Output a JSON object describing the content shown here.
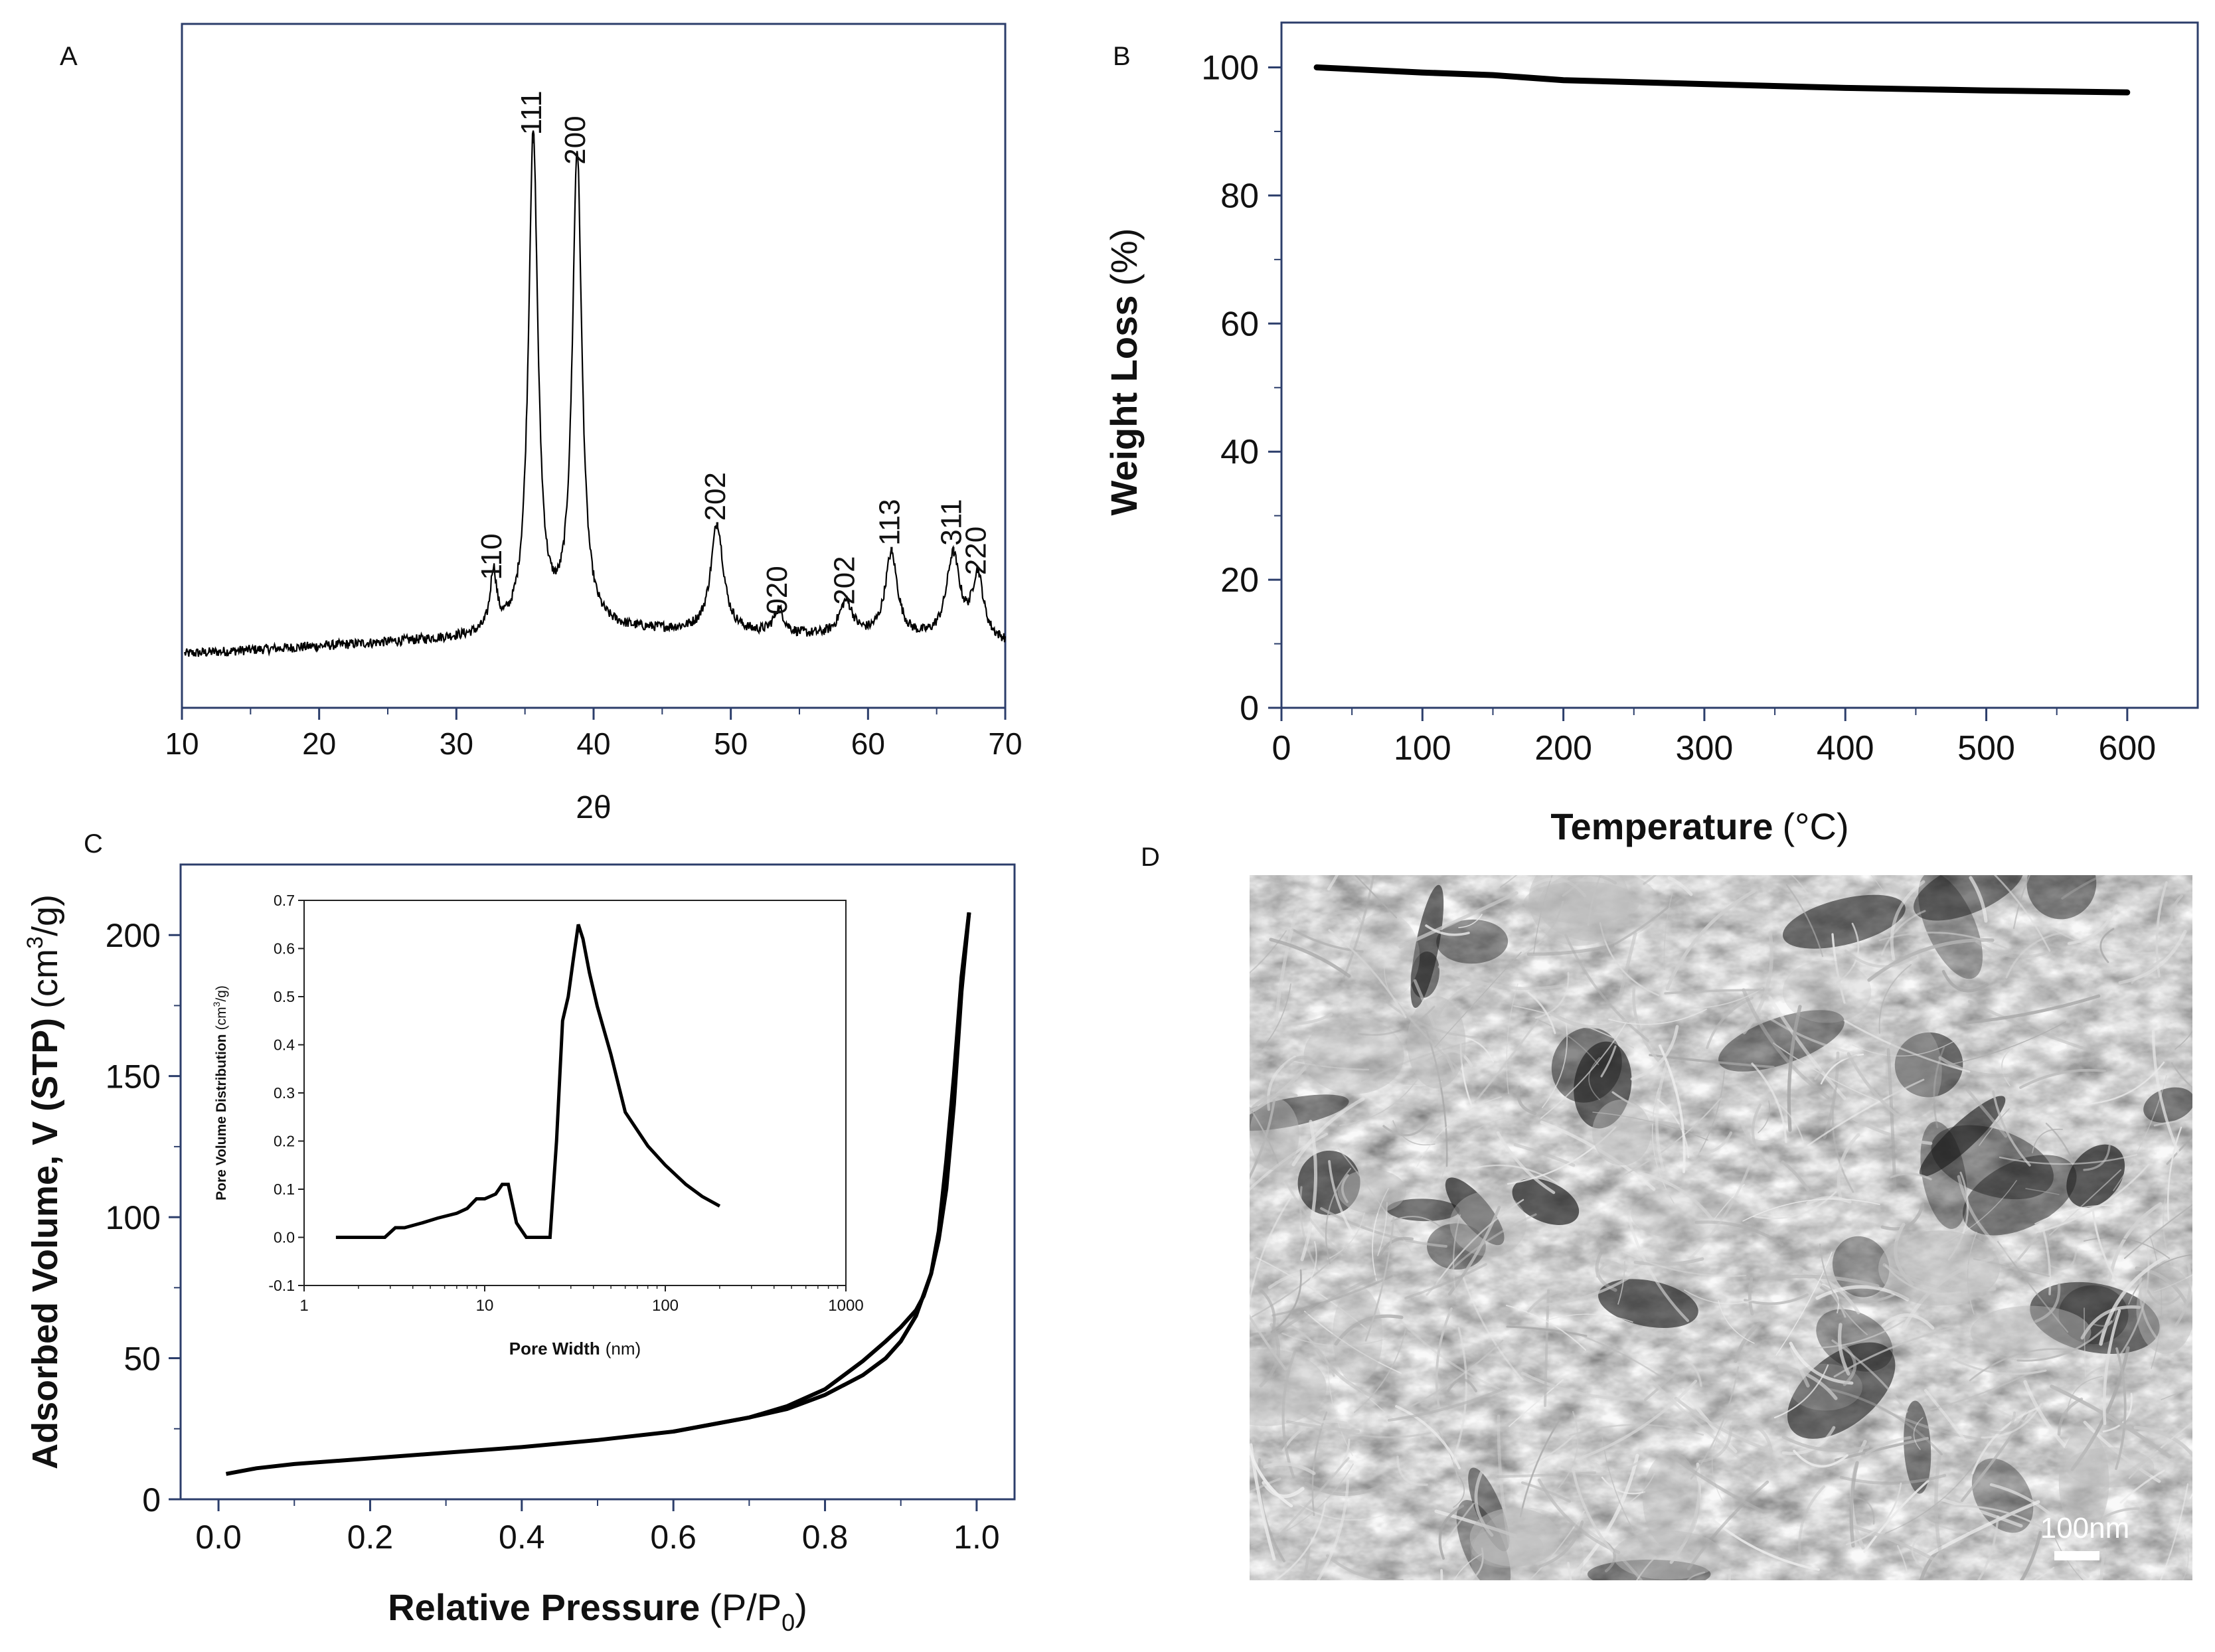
{
  "colors": {
    "axis_frame_a": "#2c3e6b",
    "axis_frame_b": "#2c3e6b",
    "axis_frame_c": "#2c3e6b",
    "axis_frame_inset": "#222222",
    "line": "#000000",
    "sem_background": "#8a8a8a",
    "scale_bar": "#ffffff"
  },
  "panels": {
    "a": {
      "letter": "A"
    },
    "b": {
      "letter": "B"
    },
    "c": {
      "letter": "C"
    },
    "d": {
      "letter": "D",
      "scale_bar_label": "100nm"
    }
  },
  "chart_data": [
    {
      "panel": "A",
      "type": "line",
      "xlabel": "2θ",
      "ylabel": "",
      "xlim": [
        10,
        70
      ],
      "xticks": [
        "10",
        "20",
        "30",
        "40",
        "50",
        "60",
        "70"
      ],
      "y_axis": "unlabeled intensity (no ticks)",
      "ylim_relative": [
        0,
        1
      ],
      "grid": false,
      "peaks": [
        {
          "label": "110",
          "x": 32.7,
          "height": 0.12
        },
        {
          "label": "-111",
          "x": 35.6,
          "height": 1.0
        },
        {
          "label": "200",
          "x": 38.8,
          "height": 0.96
        },
        {
          "label": "-202",
          "x": 49.0,
          "height": 0.22
        },
        {
          "label": "020",
          "x": 53.5,
          "height": 0.05
        },
        {
          "label": "202",
          "x": 58.4,
          "height": 0.07
        },
        {
          "label": "-113",
          "x": 61.7,
          "height": 0.17
        },
        {
          "label": "-311",
          "x": 66.2,
          "height": 0.17
        },
        {
          "label": "220",
          "x": 68.0,
          "height": 0.13
        }
      ],
      "background_y": [
        0.0,
        0.015,
        0.03,
        0.045
      ]
    },
    {
      "panel": "B",
      "type": "line",
      "xlabel": "Temperature",
      "xlabel_unit": "(°C)",
      "ylabel": "Weight Loss",
      "ylabel_unit": "(%)",
      "xlim": [
        0,
        650
      ],
      "ylim": [
        0,
        107
      ],
      "xticks": [
        "0",
        "100",
        "200",
        "300",
        "400",
        "500",
        "600"
      ],
      "yticks": [
        "0",
        "20",
        "40",
        "60",
        "80",
        "100"
      ],
      "grid": false,
      "series": [
        {
          "x": [
            25,
            100,
            150,
            200,
            300,
            400,
            500,
            600
          ],
          "y": [
            100,
            99.2,
            98.8,
            98.0,
            97.4,
            96.8,
            96.4,
            96.1
          ]
        }
      ]
    },
    {
      "panel": "C",
      "type": "line",
      "xlabel": "Relative Pressure",
      "xlabel_unit_pre": "(P/P",
      "xlabel_unit_sub": "0",
      "xlabel_unit_post": ")",
      "ylabel": "Adsorbed Volume, V (STP)",
      "ylabel_unit_pre": "(cm",
      "ylabel_unit_sup": "3",
      "ylabel_unit_post": "/g)",
      "xlim": [
        -0.05,
        1.05
      ],
      "ylim": [
        0,
        225
      ],
      "xticks": [
        "0.0",
        "0.2",
        "0.4",
        "0.6",
        "0.8",
        "1.0"
      ],
      "yticks": [
        "0",
        "50",
        "100",
        "150",
        "200"
      ],
      "grid": false,
      "series": [
        {
          "x": [
            0.01,
            0.05,
            0.1,
            0.2,
            0.3,
            0.4,
            0.5,
            0.6,
            0.7,
            0.75,
            0.8,
            0.85,
            0.88,
            0.9,
            0.92,
            0.94,
            0.95,
            0.96,
            0.97,
            0.98,
            0.99
          ],
          "y": [
            9,
            11,
            12.5,
            14.5,
            16.5,
            18.5,
            21,
            24,
            29,
            32,
            37,
            44,
            50,
            56,
            65,
            80,
            95,
            120,
            150,
            185,
            208
          ]
        },
        {
          "x": [
            0.99,
            0.98,
            0.97,
            0.96,
            0.95,
            0.94,
            0.93,
            0.92,
            0.9,
            0.88,
            0.85,
            0.8,
            0.75,
            0.7,
            0.6
          ],
          "y": [
            208,
            180,
            140,
            110,
            92,
            80,
            72,
            67,
            61,
            56,
            49,
            39,
            33,
            29,
            24
          ]
        }
      ],
      "inset": {
        "type": "line",
        "xlabel": "Pore Width",
        "xlabel_unit": "(nm)",
        "ylabel": "Pore Volume Distribution",
        "ylabel_unit_pre": "(cm",
        "ylabel_unit_sup": "3",
        "ylabel_unit_post": "/g)",
        "x_scale": "log",
        "xlim": [
          1,
          1000
        ],
        "ylim": [
          -0.1,
          0.7
        ],
        "xticks": [
          "1",
          "10",
          "100",
          "1000"
        ],
        "yticks": [
          "-0.1",
          "0.0",
          "0.1",
          "0.2",
          "0.3",
          "0.4",
          "0.5",
          "0.6",
          "0.7"
        ],
        "series": [
          {
            "x": [
              1.5,
              2.8,
              3.2,
              3.6,
              4.5,
              5.5,
              7,
              8,
              9,
              10,
              11.5,
              12.5,
              13.5,
              15,
              17,
              20,
              23,
              25,
              27,
              29,
              31,
              33,
              35,
              38,
              42,
              50,
              60,
              80,
              100,
              130,
              160,
              200
            ],
            "y": [
              0.0,
              0.0,
              0.02,
              0.02,
              0.03,
              0.04,
              0.05,
              0.06,
              0.08,
              0.08,
              0.09,
              0.11,
              0.11,
              0.03,
              0.0,
              0.0,
              0.0,
              0.2,
              0.45,
              0.5,
              0.58,
              0.65,
              0.62,
              0.55,
              0.48,
              0.38,
              0.26,
              0.19,
              0.15,
              0.11,
              0.085,
              0.065
            ]
          }
        ]
      }
    }
  ]
}
